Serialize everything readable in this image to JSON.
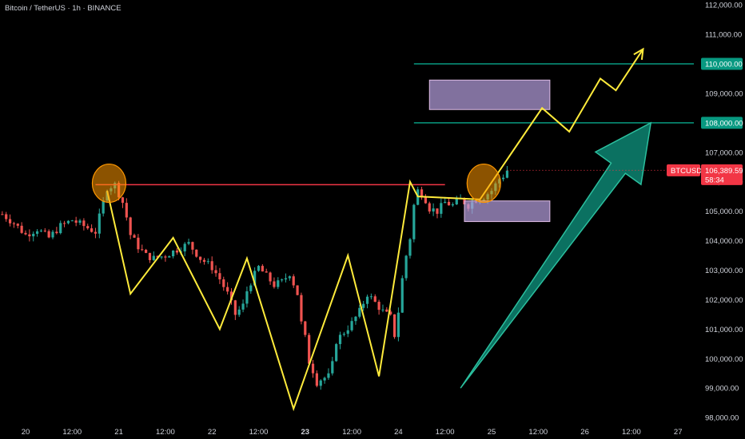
{
  "header": {
    "title": "Bitcoin / TetherUS · 1h · BINANCE"
  },
  "colors": {
    "background": "#000000",
    "bull": "#26a69a",
    "bear": "#ef5350",
    "pattern_line": "#ffeb3b",
    "resistance_line": "#f23645",
    "target_lines": "#089981",
    "zone_fill": "#b39ddb",
    "big_arrow": "#0c7d6b",
    "circle": "#ff9800"
  },
  "price_badge": {
    "symbol": "BTCUSDT",
    "price": "106,389.59",
    "countdown": "58:34"
  },
  "chart_data": {
    "type": "candlestick",
    "title": "Bitcoin / TetherUS · 1h · BINANCE",
    "ylim": [
      97800,
      112200
    ],
    "y_ticks": [
      "112,000.00",
      "111,000.00",
      "110,000.00",
      "109,000.00",
      "108,000.00",
      "107,000.00",
      "106,000.00",
      "105,000.00",
      "104,000.00",
      "103,000.00",
      "102,000.00",
      "101,000.00",
      "100,000.00",
      "99,000.00",
      "98,000.00"
    ],
    "y_tick_values": [
      112000,
      111000,
      110000,
      109000,
      108000,
      107000,
      106000,
      105000,
      104000,
      103000,
      102000,
      101000,
      100000,
      99000,
      98000
    ],
    "x_ticks": [
      {
        "label": "20",
        "t": 0,
        "bold": false
      },
      {
        "label": "12:00",
        "t": 12,
        "bold": false
      },
      {
        "label": "21",
        "t": 24,
        "bold": false
      },
      {
        "label": "12:00",
        "t": 36,
        "bold": false
      },
      {
        "label": "22",
        "t": 48,
        "bold": false
      },
      {
        "label": "12:00",
        "t": 60,
        "bold": false
      },
      {
        "label": "23",
        "t": 72,
        "bold": true
      },
      {
        "label": "12:00",
        "t": 84,
        "bold": false
      },
      {
        "label": "24",
        "t": 96,
        "bold": false
      },
      {
        "label": "12:00",
        "t": 108,
        "bold": false
      },
      {
        "label": "25",
        "t": 120,
        "bold": false
      },
      {
        "label": "12:00",
        "t": 132,
        "bold": false
      },
      {
        "label": "26",
        "t": 144,
        "bold": false
      },
      {
        "label": "12:00",
        "t": 156,
        "bold": false
      },
      {
        "label": "27",
        "t": 168,
        "bold": false
      }
    ],
    "price_path": [
      [
        -6,
        104900
      ],
      [
        -3,
        104600
      ],
      [
        0,
        104200
      ],
      [
        3,
        104400
      ],
      [
        6,
        104100
      ],
      [
        9,
        104500
      ],
      [
        12,
        104700
      ],
      [
        15,
        104500
      ],
      [
        18,
        104300
      ],
      [
        20,
        105300
      ],
      [
        21,
        105800
      ],
      [
        23,
        105900
      ],
      [
        24,
        105600
      ],
      [
        25,
        105300
      ],
      [
        26,
        104800
      ],
      [
        27,
        104200
      ],
      [
        29,
        103800
      ],
      [
        31,
        103500
      ],
      [
        33,
        103400
      ],
      [
        36,
        103500
      ],
      [
        39,
        103700
      ],
      [
        42,
        103900
      ],
      [
        45,
        103400
      ],
      [
        48,
        103100
      ],
      [
        50,
        102700
      ],
      [
        52,
        102200
      ],
      [
        54,
        101500
      ],
      [
        56,
        101800
      ],
      [
        57,
        102300
      ],
      [
        58,
        102600
      ],
      [
        60,
        103100
      ],
      [
        62,
        102800
      ],
      [
        64,
        102500
      ],
      [
        66,
        102600
      ],
      [
        68,
        102900
      ],
      [
        70,
        102200
      ],
      [
        71,
        101200
      ],
      [
        72,
        100700
      ],
      [
        73,
        99900
      ],
      [
        74,
        99600
      ],
      [
        75,
        99200
      ],
      [
        76,
        99300
      ],
      [
        78,
        99400
      ],
      [
        79,
        99800
      ],
      [
        80,
        100600
      ],
      [
        82,
        100900
      ],
      [
        84,
        101200
      ],
      [
        86,
        101600
      ],
      [
        88,
        102200
      ],
      [
        90,
        101900
      ],
      [
        92,
        101600
      ],
      [
        94,
        101400
      ],
      [
        95,
        100800
      ],
      [
        96,
        101600
      ],
      [
        97,
        102700
      ],
      [
        98,
        103500
      ],
      [
        99,
        104100
      ],
      [
        100,
        105200
      ],
      [
        101,
        105700
      ],
      [
        102,
        105600
      ],
      [
        103,
        105400
      ],
      [
        104,
        105100
      ],
      [
        106,
        105000
      ],
      [
        108,
        105300
      ],
      [
        110,
        105200
      ],
      [
        112,
        105400
      ],
      [
        114,
        105200
      ],
      [
        116,
        105400
      ],
      [
        118,
        105500
      ],
      [
        120,
        105700
      ],
      [
        121,
        105900
      ],
      [
        122,
        106100
      ],
      [
        123,
        106200
      ],
      [
        124,
        106389.59
      ]
    ],
    "levels": {
      "resistance": 105900,
      "target_upper": 110000,
      "target_lower": 108000
    },
    "target_labels": {
      "upper": "110,000.00",
      "lower": "108,000.00"
    },
    "zones": [
      {
        "t0": 104,
        "t1": 135,
        "p_top": 109450,
        "p_bottom": 108450
      },
      {
        "t0": 113,
        "t1": 135,
        "p_top": 105350,
        "p_bottom": 104650
      }
    ],
    "pattern_path": [
      [
        21,
        105700
      ],
      [
        27,
        102200
      ],
      [
        38,
        104100
      ],
      [
        50,
        101000
      ],
      [
        57,
        103400
      ],
      [
        69,
        98300
      ],
      [
        83,
        103500
      ],
      [
        91,
        99400
      ],
      [
        99,
        106000
      ],
      [
        101,
        105500
      ],
      [
        117,
        105400
      ],
      [
        133,
        108500
      ],
      [
        140,
        107700
      ],
      [
        148,
        109500
      ],
      [
        152,
        109100
      ],
      [
        159,
        110500
      ]
    ],
    "circles": [
      {
        "t": 21.5,
        "p": 105950
      },
      {
        "t": 118,
        "p": 105950
      }
    ],
    "big_arrow": {
      "t0": 112,
      "p0": 99000,
      "t1": 161,
      "p1": 108000
    }
  }
}
